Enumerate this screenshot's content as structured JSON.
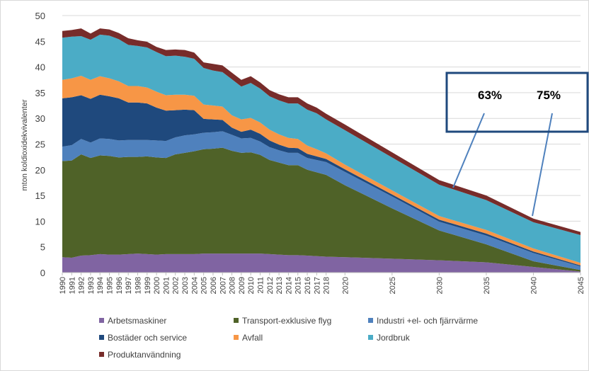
{
  "chart_data": {
    "type": "stacked_area",
    "y_label": "mton koldioxidekvivalenter",
    "x": [
      1990,
      1991,
      1992,
      1993,
      1994,
      1995,
      1996,
      1997,
      1998,
      1999,
      2000,
      2001,
      2002,
      2003,
      2004,
      2005,
      2006,
      2007,
      2008,
      2009,
      2010,
      2011,
      2012,
      2013,
      2014,
      2015,
      2016,
      2017,
      2018,
      2020,
      2025,
      2030,
      2035,
      2040,
      2045
    ],
    "xlim": [
      1990,
      2045
    ],
    "xticks": [
      1990,
      1991,
      1992,
      1993,
      1994,
      1995,
      1996,
      1997,
      1998,
      1999,
      2000,
      2001,
      2002,
      2003,
      2004,
      2005,
      2006,
      2007,
      2008,
      2009,
      2010,
      2011,
      2012,
      2013,
      2014,
      2015,
      2016,
      2017,
      2018,
      2020,
      2025,
      2030,
      2035,
      2040,
      2045
    ],
    "ylim": [
      0,
      50
    ],
    "yticks": [
      0,
      5,
      10,
      15,
      20,
      25,
      30,
      35,
      40,
      45,
      50
    ],
    "grid": true,
    "legend": "bottom",
    "series": [
      {
        "name": "Arbetsmaskiner",
        "color": "#8064a2",
        "values": [
          3.0,
          2.9,
          3.3,
          3.4,
          3.6,
          3.5,
          3.5,
          3.6,
          3.7,
          3.6,
          3.5,
          3.6,
          3.6,
          3.6,
          3.6,
          3.7,
          3.7,
          3.7,
          3.7,
          3.7,
          3.7,
          3.7,
          3.6,
          3.5,
          3.4,
          3.4,
          3.3,
          3.2,
          3.1,
          3.0,
          2.7,
          2.4,
          2.0,
          1.1,
          0.2
        ]
      },
      {
        "name": "Transport-exklusive flyg",
        "color": "#4f6228",
        "values": [
          18.7,
          18.9,
          19.7,
          18.9,
          19.2,
          19.2,
          18.9,
          18.9,
          18.8,
          19.0,
          18.9,
          18.7,
          19.4,
          19.7,
          20.0,
          20.3,
          20.4,
          20.6,
          20.0,
          19.6,
          19.7,
          19.2,
          18.3,
          17.9,
          17.5,
          17.5,
          16.7,
          16.3,
          15.9,
          14.0,
          9.8,
          5.8,
          3.5,
          1.1,
          0.3
        ]
      },
      {
        "name": "Industri +el- och fjärrvärme",
        "color": "#4f81bd",
        "values": [
          2.8,
          3.0,
          3.0,
          3.0,
          3.3,
          3.3,
          3.3,
          3.3,
          3.3,
          3.2,
          3.3,
          3.3,
          3.3,
          3.4,
          3.3,
          3.2,
          3.2,
          3.2,
          3.1,
          2.8,
          2.8,
          2.6,
          2.5,
          2.4,
          2.4,
          2.4,
          2.3,
          2.4,
          2.5,
          2.6,
          2.3,
          1.7,
          1.7,
          1.6,
          0.7
        ]
      },
      {
        "name": "Bostäder och service",
        "color": "#1f497d",
        "values": [
          9.4,
          9.3,
          8.5,
          8.5,
          8.5,
          8.3,
          8.2,
          7.3,
          7.3,
          7.1,
          6.4,
          5.9,
          5.3,
          5.0,
          4.7,
          2.7,
          2.5,
          2.2,
          1.4,
          1.3,
          1.6,
          1.5,
          1.3,
          1.1,
          1.0,
          0.9,
          0.8,
          0.7,
          0.6,
          0.5,
          0.4,
          0.4,
          0.4,
          0.3,
          0.2
        ]
      },
      {
        "name": "Avfall",
        "color": "#f79646",
        "values": [
          3.6,
          3.7,
          3.8,
          3.7,
          3.6,
          3.5,
          3.3,
          3.2,
          3.2,
          3.1,
          3.1,
          3.0,
          3.0,
          2.9,
          2.8,
          2.8,
          2.7,
          2.6,
          2.4,
          2.4,
          2.3,
          2.2,
          2.1,
          2.0,
          1.9,
          1.8,
          1.6,
          1.4,
          1.1,
          0.9,
          0.8,
          0.7,
          0.7,
          0.6,
          0.5
        ]
      },
      {
        "name": "Jordbruk",
        "color": "#4bacc6",
        "values": [
          8.2,
          8.1,
          7.7,
          7.8,
          8.1,
          8.3,
          8.2,
          8.0,
          7.8,
          7.8,
          7.7,
          7.6,
          7.6,
          7.4,
          7.2,
          7.1,
          6.8,
          6.7,
          7.0,
          6.4,
          6.8,
          6.6,
          6.5,
          6.6,
          6.7,
          6.9,
          7.0,
          7.0,
          6.6,
          6.7,
          6.4,
          6.1,
          5.8,
          5.1,
          5.4
        ]
      },
      {
        "name": "Produktanvändning",
        "color": "#772c2a",
        "values": [
          1.3,
          1.3,
          1.5,
          1.2,
          1.2,
          1.2,
          1.2,
          1.3,
          1.1,
          1.1,
          1.0,
          1.2,
          1.2,
          1.3,
          1.2,
          1.1,
          1.3,
          1.3,
          1.3,
          1.3,
          1.3,
          1.2,
          1.2,
          1.2,
          1.2,
          1.2,
          1.2,
          1.1,
          1.1,
          1.1,
          1.0,
          0.9,
          0.9,
          0.7,
          0.6
        ]
      }
    ],
    "annotations": [
      "63%",
      "75%"
    ]
  }
}
